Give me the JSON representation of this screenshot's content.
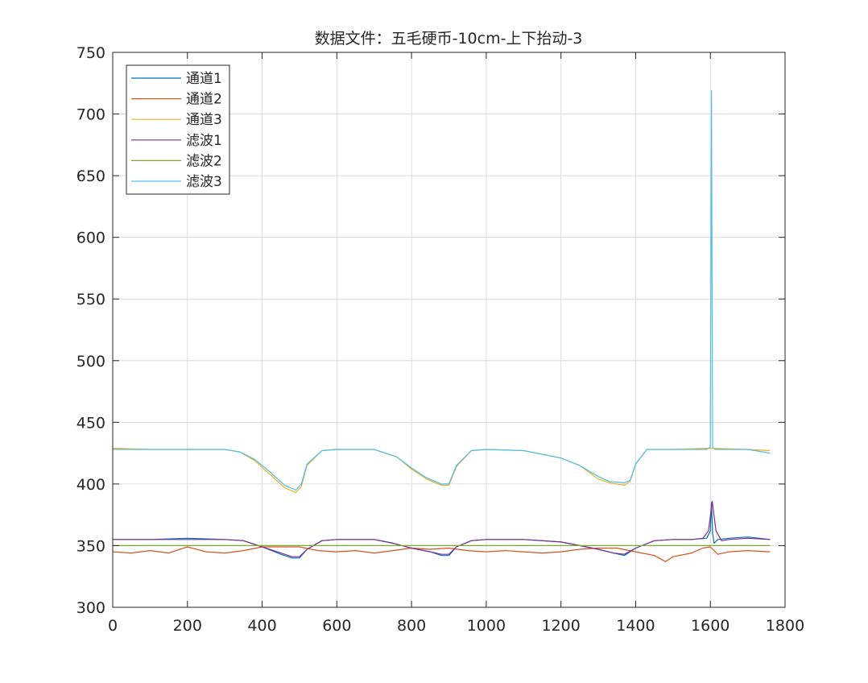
{
  "chart_data": {
    "type": "line",
    "title": "数据文件：五毛硬币-10cm-上下抬动-3",
    "xlabel": "",
    "ylabel": "",
    "xlim": [
      0,
      1800
    ],
    "ylim": [
      300,
      750
    ],
    "xticks": [
      "0",
      "200",
      "400",
      "600",
      "800",
      "1000",
      "1200",
      "1400",
      "1600",
      "1800"
    ],
    "yticks": [
      "300",
      "350",
      "400",
      "450",
      "500",
      "550",
      "600",
      "650",
      "700",
      "750"
    ],
    "grid": true,
    "legend_position": "top-left",
    "series": [
      {
        "name": "通道1",
        "color": "#0072BD",
        "x": [
          0,
          100,
          200,
          300,
          350,
          400,
          450,
          480,
          500,
          520,
          560,
          600,
          700,
          750,
          800,
          850,
          880,
          900,
          920,
          960,
          1000,
          1100,
          1200,
          1250,
          1300,
          1340,
          1370,
          1400,
          1450,
          1500,
          1550,
          1590,
          1600,
          1603,
          1606,
          1610,
          1620,
          1650,
          1700,
          1760
        ],
        "y": [
          355,
          355,
          356,
          355,
          354,
          349,
          343,
          340,
          340,
          347,
          354,
          355,
          355,
          352,
          348,
          345,
          342,
          342,
          349,
          354,
          355,
          355,
          353,
          350,
          347,
          344,
          342,
          348,
          354,
          355,
          355,
          356,
          362,
          385,
          360,
          352,
          355,
          356,
          357,
          355
        ]
      },
      {
        "name": "通道2",
        "color": "#D95319",
        "x": [
          0,
          50,
          100,
          150,
          200,
          250,
          300,
          350,
          400,
          450,
          500,
          550,
          600,
          650,
          700,
          750,
          800,
          850,
          900,
          950,
          1000,
          1050,
          1100,
          1150,
          1200,
          1250,
          1300,
          1350,
          1400,
          1450,
          1480,
          1500,
          1550,
          1580,
          1600,
          1620,
          1650,
          1700,
          1760
        ],
        "y": [
          345,
          344,
          346,
          344,
          349,
          345,
          344,
          346,
          349,
          349,
          349,
          346,
          345,
          346,
          344,
          346,
          348,
          347,
          348,
          346,
          345,
          346,
          345,
          344,
          345,
          347,
          348,
          348,
          345,
          342,
          337,
          341,
          344,
          348,
          349,
          343,
          345,
          346,
          345
        ]
      },
      {
        "name": "通道3",
        "color": "#EDB120",
        "x": [
          0,
          100,
          200,
          300,
          340,
          380,
          420,
          460,
          490,
          505,
          520,
          560,
          600,
          700,
          760,
          800,
          840,
          880,
          900,
          920,
          960,
          1000,
          1100,
          1200,
          1250,
          1300,
          1330,
          1370,
          1385,
          1400,
          1430,
          1500,
          1600,
          1700,
          1760
        ],
        "y": [
          429,
          428,
          428,
          428,
          426,
          419,
          408,
          397,
          393,
          398,
          415,
          427,
          428,
          428,
          422,
          412,
          404,
          399,
          399,
          414,
          427,
          428,
          427,
          421,
          415,
          404,
          401,
          399,
          402,
          416,
          428,
          428,
          429,
          428,
          427
        ]
      },
      {
        "name": "滤波1",
        "color": "#7E2F8E",
        "x": [
          0,
          100,
          200,
          300,
          350,
          400,
          450,
          480,
          500,
          520,
          560,
          600,
          700,
          750,
          800,
          850,
          880,
          900,
          920,
          960,
          1000,
          1100,
          1200,
          1250,
          1300,
          1340,
          1370,
          1400,
          1450,
          1500,
          1550,
          1580,
          1595,
          1605,
          1615,
          1630,
          1650,
          1700,
          1760
        ],
        "y": [
          355,
          355,
          355,
          355,
          354,
          349,
          344,
          341,
          341,
          347,
          354,
          355,
          355,
          352,
          348,
          345,
          343,
          343,
          349,
          354,
          355,
          355,
          353,
          350,
          347,
          344,
          343,
          348,
          354,
          355,
          355,
          356,
          362,
          386,
          362,
          354,
          355,
          356,
          355
        ]
      },
      {
        "name": "滤波2",
        "color": "#77AC30",
        "x": [
          0,
          100,
          200,
          300,
          400,
          500,
          600,
          700,
          800,
          900,
          1000,
          1100,
          1200,
          1300,
          1400,
          1500,
          1600,
          1700,
          1760
        ],
        "y": [
          350,
          350,
          350,
          350,
          350,
          350,
          350,
          350,
          350,
          350,
          350,
          350,
          350,
          350,
          350,
          350,
          350,
          350,
          350
        ]
      },
      {
        "name": "滤波3",
        "color": "#4DBEEE",
        "x": [
          0,
          100,
          200,
          300,
          340,
          380,
          420,
          460,
          490,
          505,
          520,
          560,
          600,
          700,
          760,
          800,
          840,
          880,
          900,
          920,
          960,
          1000,
          1100,
          1200,
          1250,
          1300,
          1330,
          1370,
          1385,
          1400,
          1430,
          1500,
          1590,
          1600,
          1603,
          1606,
          1612,
          1700,
          1760
        ],
        "y": [
          428,
          428,
          428,
          428,
          426,
          420,
          410,
          399,
          395,
          400,
          416,
          427,
          428,
          428,
          422,
          413,
          405,
          400,
          400,
          415,
          427,
          428,
          427,
          421,
          415,
          406,
          402,
          401,
          403,
          416,
          428,
          428,
          428,
          430,
          719,
          430,
          428,
          428,
          425
        ]
      }
    ]
  }
}
